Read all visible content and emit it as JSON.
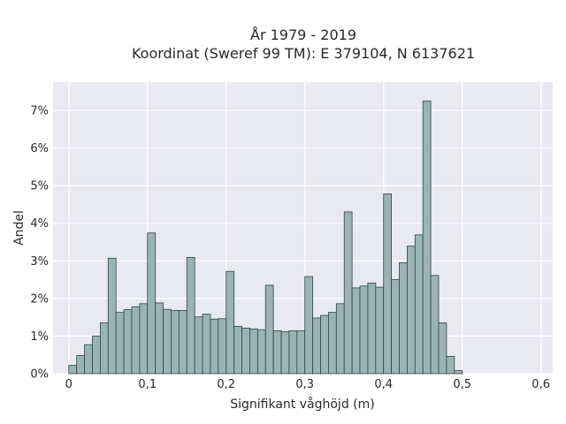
{
  "chart_data": {
    "type": "bar",
    "title_lines": [
      "År 1979 - 2019",
      "Koordinat (Sweref 99 TM): E 379104, N 6137621"
    ],
    "xlabel": "Signifikant våghöjd (m)",
    "ylabel": "Andel",
    "xlim": [
      -0.02,
      0.615
    ],
    "ylim": [
      0,
      0.0775
    ],
    "bin_width": 0.01,
    "x_ticks": [
      0,
      0.1,
      0.2,
      0.3,
      0.4,
      0.5,
      0.6
    ],
    "x_tick_labels": [
      "0",
      "0,1",
      "0,2",
      "0,3",
      "0,4",
      "0,5",
      "0,6"
    ],
    "y_ticks": [
      0,
      0.01,
      0.02,
      0.03,
      0.04,
      0.05,
      0.06,
      0.07
    ],
    "y_tick_labels": [
      "0%",
      "1%",
      "2%",
      "3%",
      "4%",
      "5%",
      "6%",
      "7%"
    ],
    "grid": true,
    "x": [
      0.0,
      0.01,
      0.02,
      0.03,
      0.04,
      0.05,
      0.06,
      0.07,
      0.08,
      0.09,
      0.1,
      0.11,
      0.12,
      0.13,
      0.14,
      0.15,
      0.16,
      0.17,
      0.18,
      0.19,
      0.2,
      0.21,
      0.22,
      0.23,
      0.24,
      0.25,
      0.26,
      0.27,
      0.28,
      0.29,
      0.3,
      0.31,
      0.32,
      0.33,
      0.34,
      0.35,
      0.36,
      0.37,
      0.38,
      0.39,
      0.4,
      0.41,
      0.42,
      0.43,
      0.44,
      0.45,
      0.46,
      0.47,
      0.48,
      0.49,
      0.5,
      0.51,
      0.52,
      0.53,
      0.54,
      0.55,
      0.56,
      0.57,
      0.58
    ],
    "values": [
      0.0022,
      0.0048,
      0.0077,
      0.01,
      0.0135,
      0.0307,
      0.0163,
      0.017,
      0.0178,
      0.0186,
      0.0374,
      0.0188,
      0.0171,
      0.0168,
      0.0168,
      0.0309,
      0.0151,
      0.0158,
      0.0145,
      0.0146,
      0.0272,
      0.0126,
      0.0121,
      0.0119,
      0.0117,
      0.0235,
      0.0114,
      0.0112,
      0.0114,
      0.0114,
      0.0258,
      0.0148,
      0.0155,
      0.0163,
      0.0186,
      0.043,
      0.0228,
      0.0233,
      0.0241,
      0.023,
      0.0478,
      0.025,
      0.0295,
      0.0339,
      0.0369,
      0.0725,
      0.0261,
      0.0135,
      0.0046,
      0.0008,
      0,
      0,
      0,
      0,
      0,
      0,
      0,
      0,
      0
    ]
  }
}
